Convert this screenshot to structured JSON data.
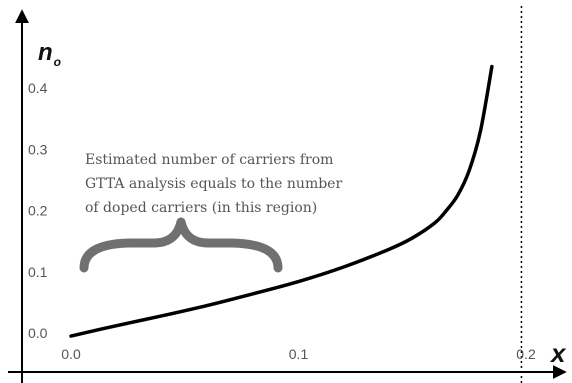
{
  "chart_data": {
    "type": "line",
    "title": "",
    "xlabel": "x",
    "ylabel": "n",
    "ylabel_subscript": "o",
    "xlim": [
      0.0,
      0.2
    ],
    "ylim": [
      0.0,
      0.4
    ],
    "x_ticks": [
      "0.0",
      "0.1",
      "0.2"
    ],
    "y_ticks": [
      "0.0",
      "0.1",
      "0.2",
      "0.3",
      "0.4"
    ],
    "grid": false,
    "legend": "none",
    "series": [
      {
        "x": [
          0.0,
          0.02,
          0.04,
          0.06,
          0.08,
          0.1,
          0.12,
          0.14,
          0.15,
          0.16,
          0.165,
          0.17,
          0.175,
          0.18,
          0.185
        ],
        "values": [
          -0.005,
          0.012,
          0.028,
          0.045,
          0.064,
          0.084,
          0.108,
          0.137,
          0.155,
          0.18,
          0.2,
          0.225,
          0.265,
          0.33,
          0.435
        ],
        "color": "#000000"
      }
    ],
    "reference_lines": [
      {
        "axis": "x",
        "value": 0.198,
        "style": "dotted"
      }
    ],
    "annotation": {
      "lines": [
        "Estimated number of carriers from",
        "GTTA analysis equals to the number",
        "of doped carriers (in this region)"
      ],
      "brace_color": "#707070",
      "text_color": "#555555"
    }
  }
}
